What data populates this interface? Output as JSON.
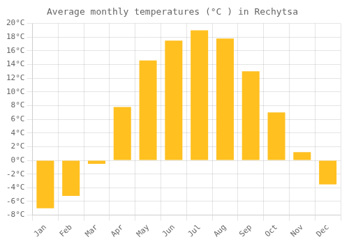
{
  "chart_data": {
    "type": "bar",
    "title": "Average monthly temperatures (°C ) in Rechytsa",
    "categories": [
      "Jan",
      "Feb",
      "Mar",
      "Apr",
      "May",
      "Jun",
      "Jul",
      "Aug",
      "Sep",
      "Oct",
      "Nov",
      "Dec"
    ],
    "values": [
      -7.0,
      -5.2,
      -0.5,
      7.8,
      14.6,
      17.5,
      19.0,
      17.8,
      13.0,
      7.0,
      1.2,
      -3.5
    ],
    "color": "#FFC020",
    "ylim": [
      -8,
      20
    ],
    "yticks": [
      {
        "value": -8,
        "label": "-8°C"
      },
      {
        "value": -6,
        "label": "-6°C"
      },
      {
        "value": -4,
        "label": "-4°C"
      },
      {
        "value": -2,
        "label": "-2°C"
      },
      {
        "value": 0,
        "label": "0°C"
      },
      {
        "value": 2,
        "label": "2°C"
      },
      {
        "value": 4,
        "label": "4°C"
      },
      {
        "value": 6,
        "label": "6°C"
      },
      {
        "value": 8,
        "label": "8°C"
      },
      {
        "value": 10,
        "label": "10°C"
      },
      {
        "value": 12,
        "label": "12°C"
      },
      {
        "value": 14,
        "label": "14°C"
      },
      {
        "value": 16,
        "label": "16°C"
      },
      {
        "value": 18,
        "label": "18°C"
      },
      {
        "value": 20,
        "label": "20°C"
      }
    ],
    "grid": true
  }
}
